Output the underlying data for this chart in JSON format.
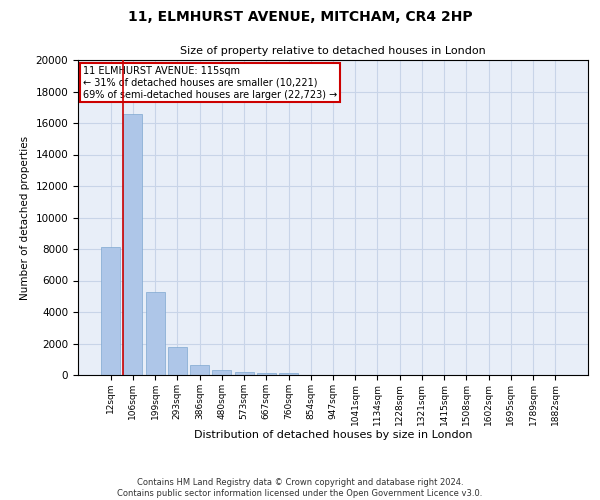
{
  "title1": "11, ELMHURST AVENUE, MITCHAM, CR4 2HP",
  "title2": "Size of property relative to detached houses in London",
  "xlabel": "Distribution of detached houses by size in London",
  "ylabel": "Number of detached properties",
  "annotation_line1": "11 ELMHURST AVENUE: 115sqm",
  "annotation_line2": "← 31% of detached houses are smaller (10,221)",
  "annotation_line3": "69% of semi-detached houses are larger (22,723) →",
  "categories": [
    "12sqm",
    "106sqm",
    "199sqm",
    "293sqm",
    "386sqm",
    "480sqm",
    "573sqm",
    "667sqm",
    "760sqm",
    "854sqm",
    "947sqm",
    "1041sqm",
    "1134sqm",
    "1228sqm",
    "1321sqm",
    "1415sqm",
    "1508sqm",
    "1602sqm",
    "1695sqm",
    "1789sqm",
    "1882sqm"
  ],
  "bar_values": [
    8100,
    16600,
    5300,
    1800,
    650,
    320,
    180,
    130,
    100,
    0,
    0,
    0,
    0,
    0,
    0,
    0,
    0,
    0,
    0,
    0,
    0
  ],
  "bar_color": "#aec6e8",
  "bar_edge_color": "#7fa8d0",
  "grid_color": "#c8d4e8",
  "background_color": "#e8eef8",
  "vline_color": "#cc0000",
  "box_color": "#cc0000",
  "ylim": [
    0,
    20000
  ],
  "yticks": [
    0,
    2000,
    4000,
    6000,
    8000,
    10000,
    12000,
    14000,
    16000,
    18000,
    20000
  ],
  "footnote1": "Contains HM Land Registry data © Crown copyright and database right 2024.",
  "footnote2": "Contains public sector information licensed under the Open Government Licence v3.0."
}
